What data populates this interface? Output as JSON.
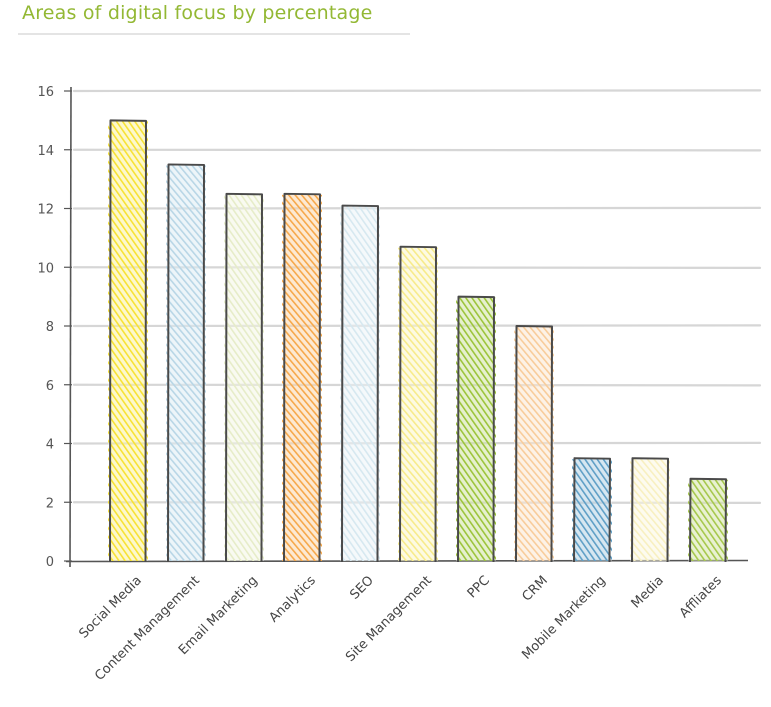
{
  "chart_data": {
    "type": "bar",
    "title": "Areas of digital focus by percentage",
    "categories": [
      "Social Media",
      "Content Management",
      "Email Marketing",
      "Analytics",
      "SEO",
      "Site Management",
      "PPC",
      "CRM",
      "Mobile Marketing",
      "Media",
      "Affliates"
    ],
    "values": [
      15,
      13.5,
      12.5,
      12.5,
      12.1,
      10.7,
      9,
      8,
      3.5,
      3.5,
      2.8
    ],
    "bar_colors": [
      "#f7e234",
      "#b9d6e6",
      "#e6edc9",
      "#f6a84a",
      "#d6e8f0",
      "#f7eb8a",
      "#9cc53a",
      "#f8cc9a",
      "#5f9fc6",
      "#f8f0c0",
      "#a6c84c"
    ],
    "ylim": [
      0,
      16
    ],
    "yticks": [
      0,
      2,
      4,
      6,
      8,
      10,
      12,
      14,
      16
    ],
    "xlabel": "",
    "ylabel": "",
    "grid": true,
    "title_color": "#93b834"
  }
}
